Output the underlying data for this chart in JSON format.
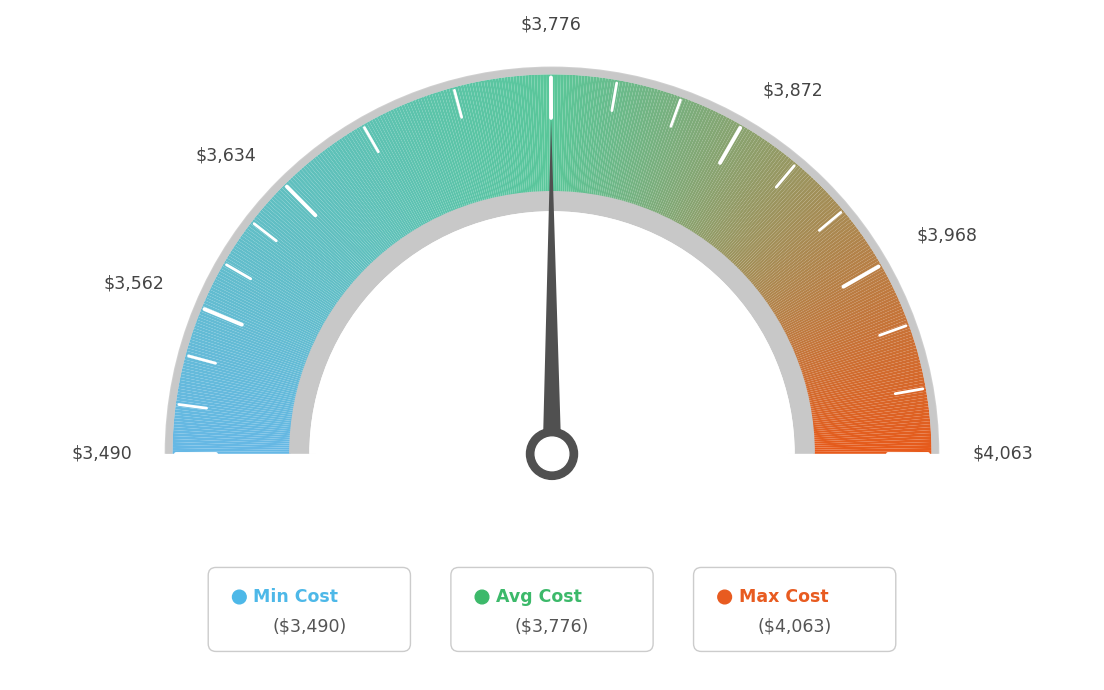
{
  "min_val": 3490,
  "max_val": 4063,
  "avg_val": 3776,
  "needle_value": 3776,
  "tick_labels": [
    "$3,490",
    "$3,562",
    "$3,634",
    "$3,776",
    "$3,872",
    "$3,968",
    "$4,063"
  ],
  "tick_values": [
    3490,
    3562,
    3634,
    3776,
    3872,
    3968,
    4063
  ],
  "minor_tick_count": 2,
  "legend_labels": [
    "Min Cost",
    "Avg Cost",
    "Max Cost"
  ],
  "legend_values": [
    "($3,490)",
    "($3,776)",
    "($4,063)"
  ],
  "legend_colors": [
    "#4DB8E8",
    "#3CB96A",
    "#E85B20"
  ],
  "background_color": "#FFFFFF",
  "color_stops": {
    "t0": [
      0.4,
      0.72,
      0.9
    ],
    "t05": [
      0.35,
      0.78,
      0.6
    ],
    "t1": [
      0.91,
      0.35,
      0.1
    ]
  }
}
